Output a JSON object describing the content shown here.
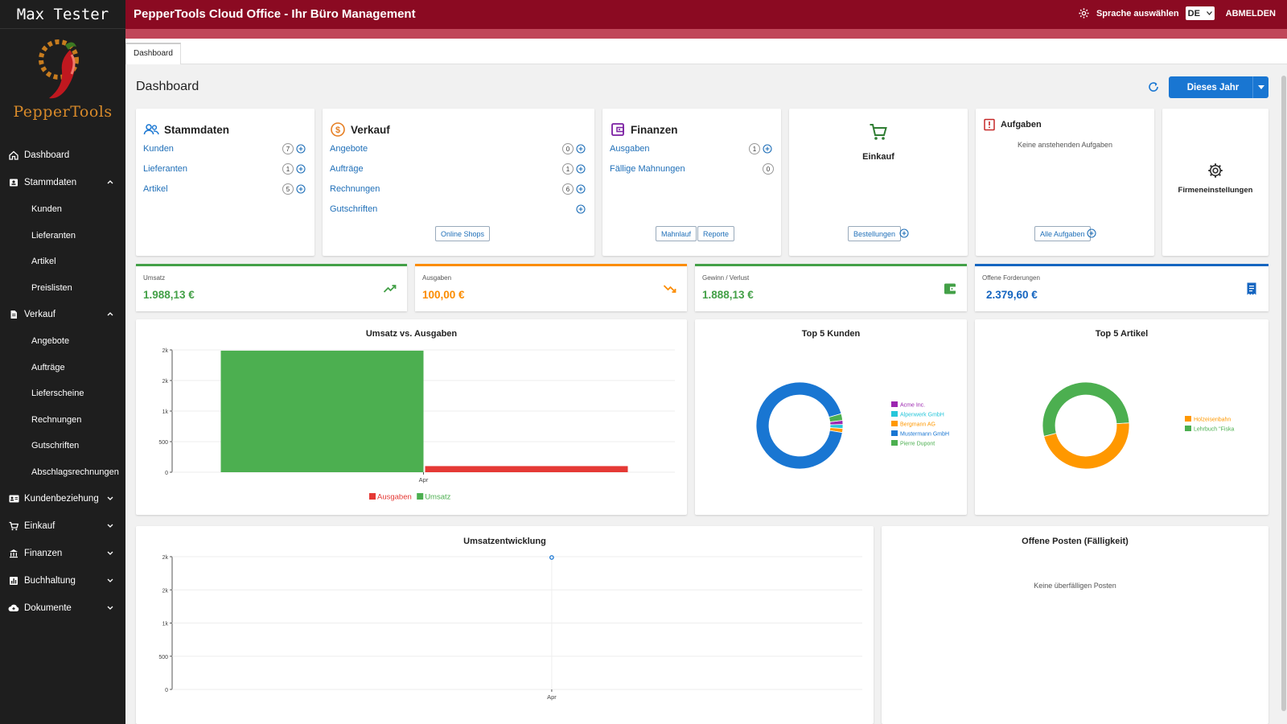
{
  "sidebar": {
    "user_name": "Max Tester",
    "brand": "PepperTools",
    "items": [
      {
        "label": "Dashboard"
      },
      {
        "label": "Stammdaten"
      },
      {
        "label": "Kunden"
      },
      {
        "label": "Lieferanten"
      },
      {
        "label": "Artikel"
      },
      {
        "label": "Preislisten"
      },
      {
        "label": "Verkauf"
      },
      {
        "label": "Angebote"
      },
      {
        "label": "Aufträge"
      },
      {
        "label": "Lieferscheine"
      },
      {
        "label": "Rechnungen"
      },
      {
        "label": "Gutschriften"
      },
      {
        "label": "Abschlagsrechnungen"
      },
      {
        "label": "Kundenbeziehung"
      },
      {
        "label": "Einkauf"
      },
      {
        "label": "Finanzen"
      },
      {
        "label": "Buchhaltung"
      },
      {
        "label": "Dokumente"
      }
    ]
  },
  "topbar": {
    "title": "PepperTools Cloud Office - Ihr Büro Management",
    "language_label": "Sprache auswählen",
    "language_value": "DE",
    "logout": "ABMELDEN"
  },
  "tabs": {
    "dashboard": "Dashboard"
  },
  "page": {
    "title": "Dashboard",
    "period_button": "Dieses Jahr"
  },
  "stammdaten": {
    "title": "Stammdaten",
    "rows": [
      {
        "label": "Kunden",
        "count": "7"
      },
      {
        "label": "Lieferanten",
        "count": "1"
      },
      {
        "label": "Artikel",
        "count": "5"
      }
    ]
  },
  "verkauf": {
    "title": "Verkauf",
    "rows": [
      {
        "label": "Angebote",
        "count": "0"
      },
      {
        "label": "Aufträge",
        "count": "1"
      },
      {
        "label": "Rechnungen",
        "count": "6"
      },
      {
        "label": "Gutschriften",
        "count": ""
      }
    ],
    "button": "Online Shops"
  },
  "finanzen": {
    "title": "Finanzen",
    "rows": [
      {
        "label": "Ausgaben",
        "count": "1"
      },
      {
        "label": "Fällige Mahnungen",
        "count": "0"
      }
    ],
    "buttons": [
      "Mahnlauf",
      "Reporte"
    ]
  },
  "einkauf": {
    "title": "Einkauf",
    "button": "Bestellungen"
  },
  "aufgaben": {
    "title": "Aufgaben",
    "empty": "Keine anstehenden Aufgaben",
    "button": "Alle Aufgaben"
  },
  "firmeneinstellungen": {
    "title": "Firmeneinstellungen"
  },
  "kpis": [
    {
      "label": "Umsatz",
      "value": "1.988,13 €",
      "color": "#43a047",
      "icon": "trending-up-icon"
    },
    {
      "label": "Ausgaben",
      "value": "100,00 €",
      "color": "#fb8c00",
      "icon": "trending-down-icon"
    },
    {
      "label": "Gewinn / Verlust",
      "value": "1.888,13 €",
      "color": "#43a047",
      "icon": "wallet-icon"
    },
    {
      "label": "Offene Forderungen",
      "value": "2.379,60 €",
      "color": "#1565c0",
      "icon": "invoice-icon"
    }
  ],
  "colors": {
    "brand": "#8b0a22",
    "accent": "#1976d2",
    "link": "#1f6fb8",
    "sidebar": "#1e1e1e"
  },
  "chart_data": [
    {
      "type": "bar",
      "title": "Umsatz vs. Ausgaben",
      "categories": [
        "Apr"
      ],
      "series": [
        {
          "name": "Umsatz",
          "values": [
            1988.13
          ],
          "color": "#4caf50"
        },
        {
          "name": "Ausgaben",
          "values": [
            100
          ],
          "color": "#e53935"
        }
      ],
      "yticks": [
        "0",
        "500",
        "1k",
        "2k",
        "2k"
      ],
      "ylim": [
        0,
        2000
      ],
      "legend": "bottom"
    },
    {
      "type": "pie",
      "title": "Top 5 Kunden",
      "labels": [
        "Acme Inc.",
        "Alpenwerk GmbH",
        "Bergmann AG",
        "Mustermann GmbH",
        "Pierre Dupont"
      ],
      "colors": [
        "#9c27b0",
        "#26c6da",
        "#ff9800",
        "#1976d2",
        "#4caf50"
      ],
      "values": [
        1.5,
        1.5,
        1.5,
        93,
        2.5
      ],
      "legend": "right"
    },
    {
      "type": "pie",
      "title": "Top 5 Artikel",
      "labels": [
        "Holzeisenbahn",
        "Lehrbuch \"Fiska"
      ],
      "colors": [
        "#ff9800",
        "#4caf50"
      ],
      "values": [
        47,
        53
      ],
      "legend": "right"
    },
    {
      "type": "line",
      "title": "Umsatzentwicklung",
      "categories": [
        "Apr"
      ],
      "series": [
        {
          "name": "Umsatz",
          "values": [
            1988.13
          ],
          "color": "#1976d2"
        }
      ],
      "yticks": [
        "0",
        "500",
        "1k",
        "2k",
        "2k"
      ],
      "ylim": [
        0,
        2000
      ]
    }
  ],
  "offene_posten": {
    "title": "Offene Posten (Fälligkeit)",
    "empty": "Keine überfälligen Posten"
  }
}
